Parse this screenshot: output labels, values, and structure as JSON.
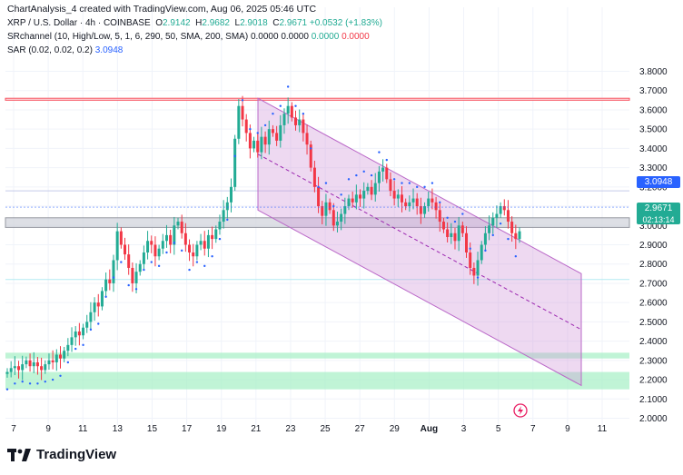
{
  "header": {
    "author_line": "ChartAnalysis_4 created with TradingView.com, Aug 06, 2025 05:46 UTC",
    "symbol": "XRP / U.S. Dollar · 4h · COINBASE",
    "ohlc": {
      "o_label": "O",
      "o": "2.9142",
      "h_label": "H",
      "h": "2.9682",
      "l_label": "L",
      "l": "2.9018",
      "c_label": "C",
      "c": "2.9671",
      "change": "+0.0532 (+1.83%)"
    },
    "indicator1": {
      "name": "SRchannel (10, High/Low, 5, 1, 6, 290, 50, SMA, 200, SMA)",
      "v1": "0.0000",
      "v2": "0.0000",
      "v3": "0.0000",
      "v4": "0.0000"
    },
    "indicator2": {
      "name": "SAR (0.02, 0.02, 0.2)",
      "value": "3.0948"
    }
  },
  "price_tags": {
    "sar": {
      "text": "3.0948",
      "color": "#2962ff"
    },
    "last": {
      "price": "2.9671",
      "timer": "02:13:14",
      "color": "#22ab94"
    }
  },
  "brand": {
    "name": "TradingView"
  },
  "colors": {
    "up": "#22ab94",
    "down": "#f23645",
    "sar": "#2962ff",
    "channel": "#ce93d8",
    "support": "#a5f0c5",
    "resistance": "#f7525f"
  },
  "chart_data": {
    "type": "candlestick",
    "yaxis": {
      "min": 2.0,
      "max": 3.8,
      "ticks": [
        "3.8000",
        "3.7000",
        "3.6000",
        "3.5000",
        "3.4000",
        "3.3000",
        "3.2000",
        "3.1000",
        "3.0000",
        "2.9000",
        "2.8000",
        "2.7000",
        "2.6000",
        "2.5000",
        "2.4000",
        "2.3000",
        "2.2000",
        "2.1000",
        "2.0000"
      ]
    },
    "xaxis": {
      "ticks": [
        "7",
        "9",
        "11",
        "13",
        "15",
        "17",
        "19",
        "21",
        "23",
        "25",
        "27",
        "29",
        "Aug",
        "3",
        "5",
        "7",
        "9",
        "11"
      ]
    },
    "candles_close": [
      2.24,
      2.26,
      2.27,
      2.25,
      2.28,
      2.3,
      2.27,
      2.29,
      2.27,
      2.25,
      2.28,
      2.3,
      2.29,
      2.33,
      2.31,
      2.35,
      2.38,
      2.42,
      2.45,
      2.43,
      2.47,
      2.5,
      2.55,
      2.6,
      2.58,
      2.66,
      2.72,
      2.7,
      2.82,
      2.97,
      2.9,
      2.85,
      2.78,
      2.7,
      2.76,
      2.8,
      2.86,
      2.92,
      2.9,
      2.84,
      2.88,
      2.92,
      2.95,
      2.9,
      3.0,
      3.02,
      2.96,
      2.9,
      2.86,
      2.84,
      2.9,
      2.92,
      2.88,
      2.95,
      2.93,
      2.98,
      3.02,
      3.08,
      3.12,
      3.2,
      3.45,
      3.62,
      3.55,
      3.48,
      3.4,
      3.44,
      3.38,
      3.46,
      3.42,
      3.5,
      3.48,
      3.44,
      3.52,
      3.58,
      3.62,
      3.56,
      3.52,
      3.55,
      3.48,
      3.42,
      3.3,
      3.2,
      3.1,
      3.05,
      3.12,
      3.08,
      3.0,
      3.02,
      3.06,
      3.1,
      3.14,
      3.12,
      3.16,
      3.14,
      3.18,
      3.2,
      3.16,
      3.22,
      3.28,
      3.3,
      3.24,
      3.18,
      3.14,
      3.16,
      3.12,
      3.1,
      3.12,
      3.14,
      3.1,
      3.06,
      3.1,
      3.14,
      3.12,
      3.08,
      3.02,
      2.98,
      2.94,
      2.96,
      2.92,
      3.0,
      2.96,
      2.86,
      2.78,
      2.74,
      2.82,
      2.9,
      2.96,
      3.0,
      3.04,
      3.06,
      3.1,
      3.08,
      3.02,
      2.96,
      2.93,
      2.97
    ],
    "sar_value": 3.0948,
    "levels": {
      "resistance": [
        3.65,
        3.66
      ],
      "upper_band": [
        2.99,
        3.04
      ],
      "line_3_18": 3.18,
      "line_2_72": 2.72,
      "support_zone_1": [
        2.31,
        2.34
      ],
      "support_zone_2": [
        2.15,
        2.24
      ]
    },
    "channel": {
      "upper_start": 3.66,
      "upper_end": 2.75,
      "lower_start": 3.08,
      "lower_end": 2.17
    },
    "grid": true
  }
}
